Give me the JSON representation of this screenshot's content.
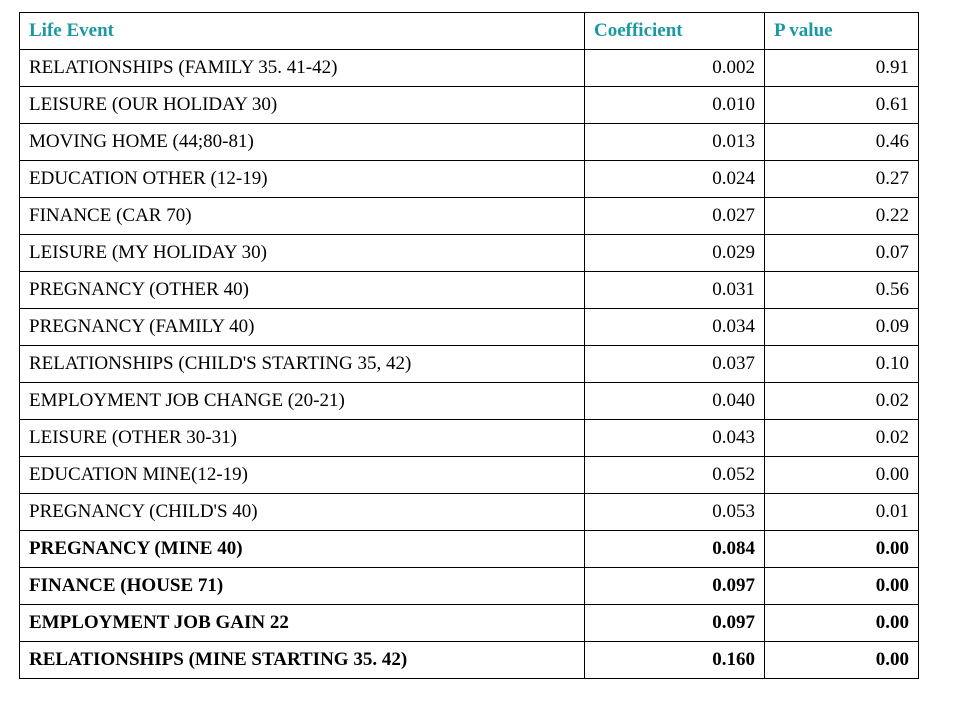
{
  "header": {
    "col_event": "Life Event",
    "col_coefficient": "Coefficient",
    "col_pvalue": "P value"
  },
  "header_color": "#1a9aa0",
  "rows": [
    {
      "event": "RELATIONSHIPS (FAMILY 35. 41-42)",
      "coefficient": "0.002",
      "pvalue": "0.91",
      "bold": false
    },
    {
      "event": "LEISURE (OUR HOLIDAY 30)",
      "coefficient": "0.010",
      "pvalue": "0.61",
      "bold": false
    },
    {
      "event": "MOVING HOME (44;80-81)",
      "coefficient": "0.013",
      "pvalue": "0.46",
      "bold": false
    },
    {
      "event": "EDUCATION OTHER (12-19)",
      "coefficient": "0.024",
      "pvalue": "0.27",
      "bold": false
    },
    {
      "event": "FINANCE (CAR 70)",
      "coefficient": "0.027",
      "pvalue": "0.22",
      "bold": false
    },
    {
      "event": "LEISURE (MY HOLIDAY 30)",
      "coefficient": "0.029",
      "pvalue": "0.07",
      "bold": false
    },
    {
      "event": "PREGNANCY (OTHER 40)",
      "coefficient": "0.031",
      "pvalue": "0.56",
      "bold": false
    },
    {
      "event": "PREGNANCY (FAMILY 40)",
      "coefficient": "0.034",
      "pvalue": "0.09",
      "bold": false
    },
    {
      "event": "RELATIONSHIPS (CHILD'S STARTING 35, 42)",
      "coefficient": "0.037",
      "pvalue": "0.10",
      "bold": false
    },
    {
      "event": "EMPLOYMENT JOB CHANGE (20-21)",
      "coefficient": "0.040",
      "pvalue": "0.02",
      "bold": false
    },
    {
      "event": "LEISURE (OTHER 30-31)",
      "coefficient": "0.043",
      "pvalue": "0.02",
      "bold": false
    },
    {
      "event": "EDUCATION MINE(12-19)",
      "coefficient": "0.052",
      "pvalue": "0.00",
      "bold": false
    },
    {
      "event": "PREGNANCY (CHILD'S 40)",
      "coefficient": "0.053",
      "pvalue": "0.01",
      "bold": false
    },
    {
      "event": "PREGNANCY (MINE 40)",
      "coefficient": "0.084",
      "pvalue": "0.00",
      "bold": true
    },
    {
      "event": "FINANCE (HOUSE 71)",
      "coefficient": "0.097",
      "pvalue": "0.00",
      "bold": true
    },
    {
      "event": "EMPLOYMENT JOB GAIN 22",
      "coefficient": "0.097",
      "pvalue": "0.00",
      "bold": true
    },
    {
      "event": "RELATIONSHIPS (MINE STARTING 35. 42)",
      "coefficient": "0.160",
      "pvalue": "0.00",
      "bold": true
    }
  ]
}
